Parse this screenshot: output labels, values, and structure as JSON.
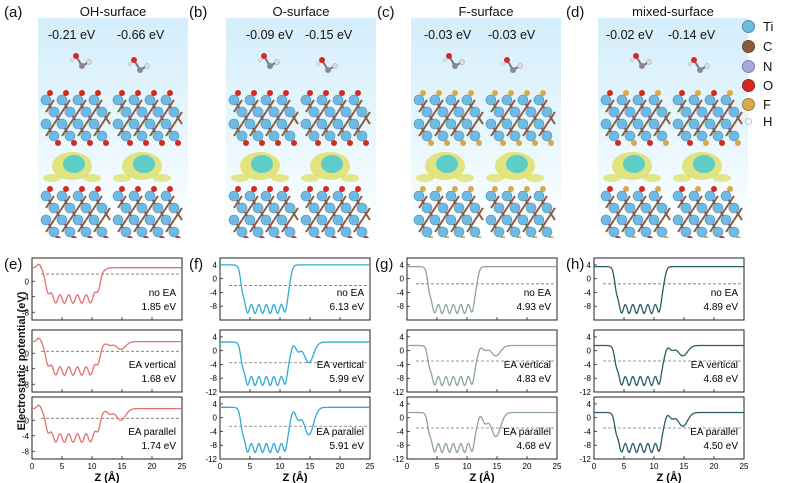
{
  "colors": {
    "oh": "#e2716f",
    "o": "#33a9d6",
    "f": "#8fa39e",
    "mixed": "#275e66",
    "ti": "#6fb9e2",
    "c": "#8c5a3c",
    "n": "#a6a9de",
    "o_atom": "#d42a22",
    "f_atom": "#d8a84d",
    "h": "#ffffff"
  },
  "top_panels": [
    {
      "label": "(a)",
      "title": "OH-surface",
      "energies": [
        "-0.21 eV",
        "-0.66 eV"
      ],
      "surface_atom": "o_atom"
    },
    {
      "label": "(b)",
      "title": "O-surface",
      "energies": [
        "-0.09 eV",
        "-0.15 eV"
      ],
      "surface_atom": "o_atom"
    },
    {
      "label": "(c)",
      "title": "F-surface",
      "energies": [
        "-0.03 eV",
        "-0.03 eV"
      ],
      "surface_atom": "f_atom"
    },
    {
      "label": "(d)",
      "title": "mixed-surface",
      "energies": [
        "-0.02 eV",
        "-0.14 eV"
      ],
      "surface_atom": "mixed"
    }
  ],
  "legend": [
    {
      "symbol": "Ti",
      "color_key": "ti"
    },
    {
      "symbol": "C",
      "color_key": "c"
    },
    {
      "symbol": "N",
      "color_key": "n"
    },
    {
      "symbol": "O",
      "color_key": "o_atom"
    },
    {
      "symbol": "F",
      "color_key": "f_atom"
    },
    {
      "symbol": "H",
      "color_key": "h"
    }
  ],
  "chart_data": [
    {
      "type": "line",
      "panel": "(e)",
      "color_key": "oh",
      "xlabel": "Z (Å)",
      "ylabel": "Electrostatic potential (eV)",
      "xlim": [
        0,
        25
      ],
      "xticks": [
        0,
        5,
        10,
        15,
        20,
        25
      ],
      "subplots": [
        {
          "name": "no EA",
          "value": "1.85 eV",
          "ylim": [
            -10,
            6
          ],
          "yticks": [
            -8,
            -4,
            0
          ],
          "dashed_level": 1.85,
          "vacuum": 3.5,
          "ea_dip": 0,
          "bump_shape": "oh"
        },
        {
          "name": "EA vertical",
          "value": "1.68 eV",
          "ylim": [
            -10,
            6
          ],
          "yticks": [
            -8,
            -4,
            0
          ],
          "dashed_level": 0.5,
          "vacuum": 3.0,
          "ea_dip": 2,
          "bump_shape": "oh"
        },
        {
          "name": "EA parallel",
          "value": "1.74 eV",
          "ylim": [
            -10,
            6
          ],
          "yticks": [
            -8,
            -4,
            0
          ],
          "dashed_level": 0.5,
          "vacuum": 3.0,
          "ea_dip": 3,
          "bump_shape": "oh"
        }
      ]
    },
    {
      "type": "line",
      "panel": "(f)",
      "color_key": "o",
      "xlabel": "Z (Å)",
      "ylabel": "",
      "xlim": [
        0,
        25
      ],
      "xticks": [
        0,
        5,
        10,
        15,
        20,
        25
      ],
      "subplots": [
        {
          "name": "no EA",
          "value": "6.13 eV",
          "ylim": [
            -12,
            6
          ],
          "yticks": [
            -8,
            -4,
            0,
            4
          ],
          "dashed_level": -2,
          "vacuum": 4,
          "ea_dip": 0,
          "bump_shape": "metal"
        },
        {
          "name": "EA vertical",
          "value": "5.99 eV",
          "ylim": [
            -12,
            6
          ],
          "yticks": [
            -12,
            -8,
            -4,
            0,
            4
          ],
          "dashed_level": -3.5,
          "vacuum": 2.5,
          "ea_dip": 6,
          "bump_shape": "metal"
        },
        {
          "name": "EA parallel",
          "value": "5.91 eV",
          "ylim": [
            -12,
            6
          ],
          "yticks": [
            -12,
            -8,
            -4,
            0,
            4
          ],
          "dashed_level": -2.5,
          "vacuum": 3.0,
          "ea_dip": 8,
          "bump_shape": "metal"
        }
      ]
    },
    {
      "type": "line",
      "panel": "(g)",
      "color_key": "f",
      "xlabel": "Z (Å)",
      "ylabel": "",
      "xlim": [
        0,
        25
      ],
      "xticks": [
        0,
        5,
        10,
        15,
        20,
        25
      ],
      "subplots": [
        {
          "name": "no EA",
          "value": "4.93 eV",
          "ylim": [
            -12,
            6
          ],
          "yticks": [
            -8,
            -4,
            0,
            4
          ],
          "dashed_level": -1.5,
          "vacuum": 3.5,
          "ea_dip": 0,
          "bump_shape": "metal"
        },
        {
          "name": "EA vertical",
          "value": "4.83 eV",
          "ylim": [
            -12,
            6
          ],
          "yticks": [
            -12,
            -8,
            -4,
            0,
            4
          ],
          "dashed_level": -3,
          "vacuum": 1.5,
          "ea_dip": 3,
          "bump_shape": "metal"
        },
        {
          "name": "EA parallel",
          "value": "4.68 eV",
          "ylim": [
            -12,
            6
          ],
          "yticks": [
            -12,
            -8,
            -4,
            0,
            4
          ],
          "dashed_level": -3,
          "vacuum": 1.5,
          "ea_dip": 7,
          "bump_shape": "metal"
        }
      ]
    },
    {
      "type": "line",
      "panel": "(h)",
      "color_key": "mixed",
      "xlabel": "Z (Å)",
      "ylabel": "",
      "xlim": [
        0,
        25
      ],
      "xticks": [
        0,
        5,
        10,
        15,
        20,
        25
      ],
      "subplots": [
        {
          "name": "no EA",
          "value": "4.89 eV",
          "ylim": [
            -12,
            6
          ],
          "yticks": [
            -8,
            -4,
            0,
            4
          ],
          "dashed_level": -1.5,
          "vacuum": 3.5,
          "ea_dip": 0,
          "bump_shape": "metal"
        },
        {
          "name": "EA vertical",
          "value": "4.68 eV",
          "ylim": [
            -12,
            6
          ],
          "yticks": [
            -12,
            -8,
            -4,
            0,
            4
          ],
          "dashed_level": -3,
          "vacuum": 1.5,
          "ea_dip": 3,
          "bump_shape": "metal"
        },
        {
          "name": "EA parallel",
          "value": "4.50 eV",
          "ylim": [
            -12,
            6
          ],
          "yticks": [
            -12,
            -8,
            -4,
            0,
            4
          ],
          "dashed_level": -3,
          "vacuum": 1.5,
          "ea_dip": 4,
          "bump_shape": "metal"
        }
      ]
    }
  ]
}
